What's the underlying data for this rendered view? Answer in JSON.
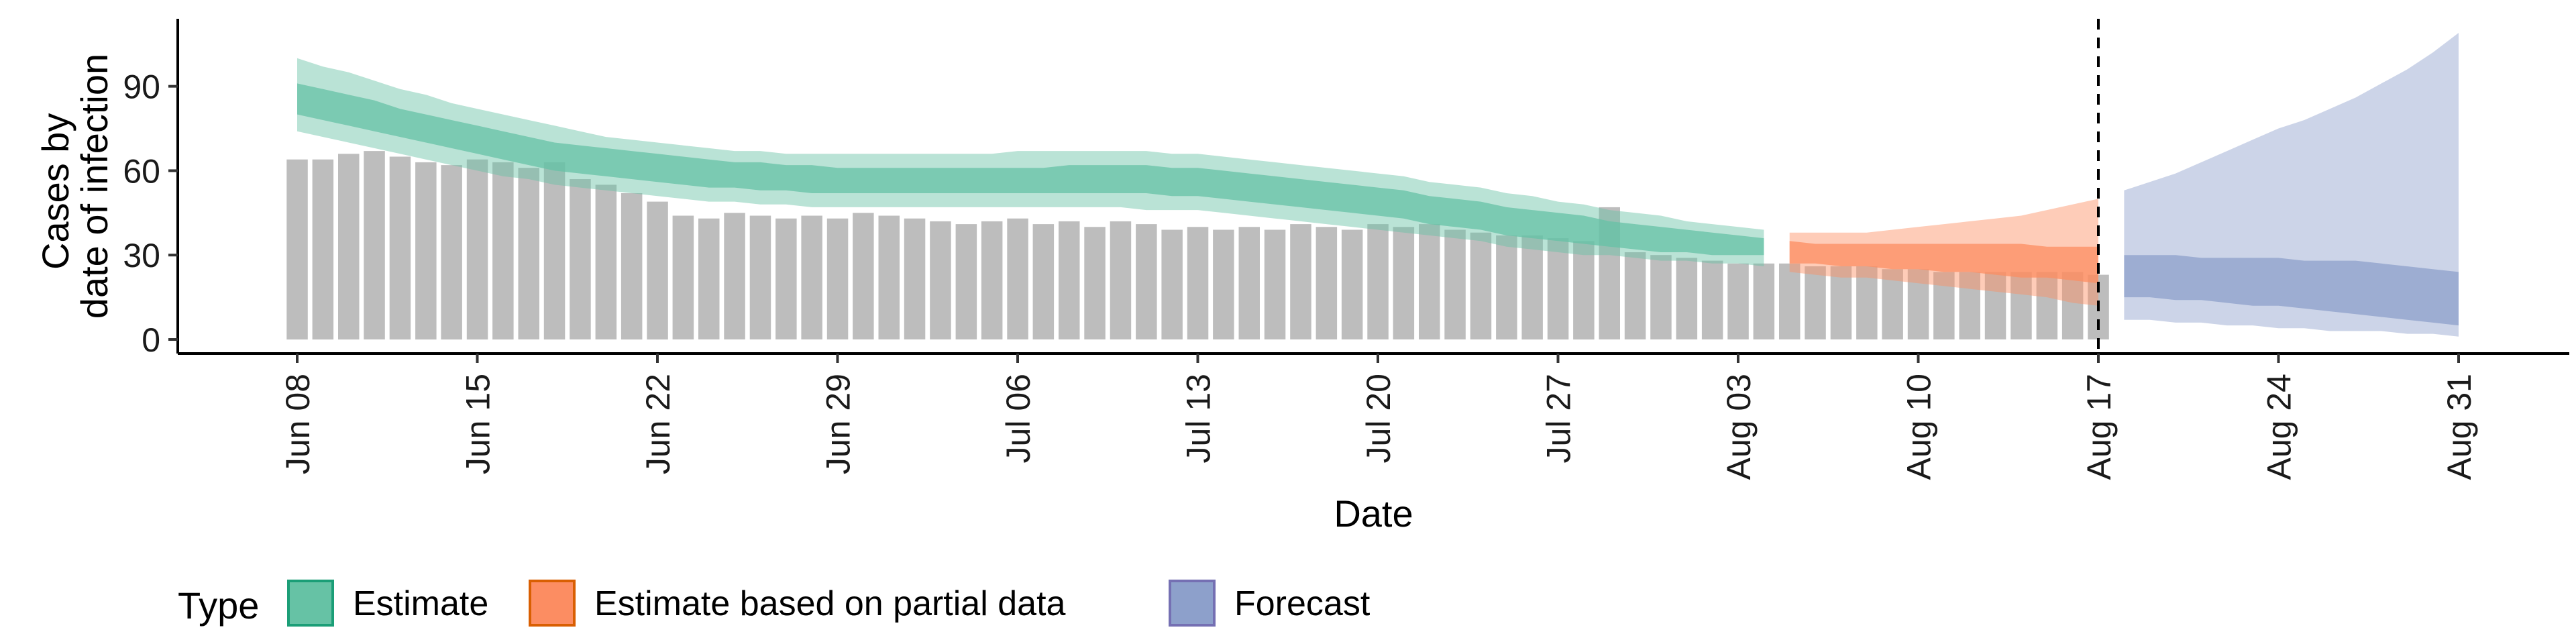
{
  "chart_data": {
    "type": "area",
    "xlabel": "Date",
    "ylabel_lines": [
      "Cases by",
      "date of infection"
    ],
    "ylim": [
      -5,
      114
    ],
    "y_ticks": [
      0,
      30,
      60,
      90
    ],
    "x_start": "2020-06-08",
    "x_end": "2020-08-31",
    "x_ticks": [
      {
        "date": "2020-06-08",
        "label": "Jun 08"
      },
      {
        "date": "2020-06-15",
        "label": "Jun 15"
      },
      {
        "date": "2020-06-22",
        "label": "Jun 22"
      },
      {
        "date": "2020-06-29",
        "label": "Jun 29"
      },
      {
        "date": "2020-07-06",
        "label": "Jul 06"
      },
      {
        "date": "2020-07-13",
        "label": "Jul 13"
      },
      {
        "date": "2020-07-20",
        "label": "Jul 20"
      },
      {
        "date": "2020-07-27",
        "label": "Jul 27"
      },
      {
        "date": "2020-08-03",
        "label": "Aug 03"
      },
      {
        "date": "2020-08-10",
        "label": "Aug 10"
      },
      {
        "date": "2020-08-17",
        "label": "Aug 17"
      },
      {
        "date": "2020-08-24",
        "label": "Aug 24"
      },
      {
        "date": "2020-08-31",
        "label": "Aug 31"
      }
    ],
    "vline_date": "2020-08-17",
    "reported_cases": {
      "start_date": "2020-06-08",
      "color": "#bdbdbd",
      "values": [
        64,
        64,
        66,
        67,
        65,
        63,
        62,
        64,
        63,
        61,
        63,
        57,
        55,
        52,
        49,
        44,
        43,
        45,
        44,
        43,
        44,
        43,
        45,
        44,
        43,
        42,
        41,
        42,
        43,
        41,
        42,
        40,
        42,
        41,
        39,
        40,
        39,
        40,
        39,
        41,
        40,
        39,
        41,
        40,
        41,
        39,
        38,
        37,
        37,
        36,
        35,
        47,
        31,
        30,
        29,
        28,
        27,
        27,
        27,
        26,
        26,
        26,
        25,
        25,
        24,
        24,
        24,
        24,
        24,
        24,
        23
      ]
    },
    "series": [
      {
        "name": "Estimate",
        "color": "#66c2a5",
        "start_date": "2020-06-08",
        "median": [
          85,
          83,
          81,
          79,
          77,
          75,
          73,
          71,
          69,
          67,
          65,
          64,
          63,
          62,
          61,
          60,
          59,
          59,
          58,
          58,
          57,
          57,
          57,
          57,
          57,
          57,
          57,
          57,
          57,
          57,
          57,
          57,
          57,
          57,
          56,
          56,
          55,
          54,
          53,
          52,
          51,
          50,
          49,
          48,
          46,
          45,
          44,
          42,
          41,
          40,
          39,
          38,
          37,
          36,
          35,
          34,
          34,
          33
        ],
        "lower50": [
          80,
          78,
          76,
          74,
          72,
          70,
          68,
          66,
          64,
          62,
          60,
          59,
          58,
          57,
          56,
          55,
          54,
          54,
          53,
          53,
          52,
          52,
          52,
          52,
          52,
          52,
          52,
          52,
          52,
          52,
          52,
          52,
          52,
          52,
          51,
          51,
          50,
          49,
          48,
          47,
          46,
          45,
          44,
          43,
          41,
          40,
          39,
          37,
          36,
          35,
          34,
          33,
          32,
          31,
          31,
          30,
          30,
          30
        ],
        "upper50": [
          91,
          89,
          87,
          85,
          82,
          80,
          78,
          76,
          74,
          72,
          70,
          69,
          68,
          67,
          66,
          65,
          64,
          63,
          63,
          62,
          62,
          61,
          61,
          61,
          61,
          61,
          61,
          61,
          61,
          61,
          62,
          62,
          62,
          62,
          61,
          61,
          60,
          59,
          58,
          57,
          56,
          55,
          54,
          53,
          51,
          50,
          49,
          47,
          46,
          45,
          44,
          42,
          41,
          40,
          39,
          38,
          37,
          36
        ],
        "lower90": [
          74,
          72,
          70,
          68,
          66,
          64,
          62,
          60,
          58,
          57,
          55,
          54,
          53,
          52,
          51,
          50,
          49,
          49,
          48,
          48,
          47,
          47,
          47,
          47,
          47,
          47,
          47,
          47,
          47,
          47,
          47,
          47,
          47,
          46,
          46,
          46,
          45,
          44,
          43,
          42,
          41,
          40,
          39,
          38,
          37,
          36,
          35,
          33,
          32,
          31,
          30,
          30,
          29,
          28,
          28,
          27,
          27,
          26
        ],
        "upper90": [
          100,
          97,
          95,
          92,
          89,
          87,
          84,
          82,
          80,
          78,
          76,
          74,
          72,
          71,
          70,
          69,
          68,
          67,
          67,
          66,
          66,
          66,
          66,
          66,
          66,
          66,
          66,
          66,
          67,
          67,
          67,
          67,
          67,
          67,
          66,
          66,
          65,
          64,
          63,
          62,
          61,
          60,
          59,
          58,
          56,
          55,
          54,
          52,
          51,
          49,
          48,
          46,
          45,
          44,
          42,
          41,
          40,
          39
        ]
      },
      {
        "name": "Estimate based on partial data",
        "color": "#fc8d62",
        "start_date": "2020-08-05",
        "median": [
          31,
          31,
          30,
          30,
          30,
          29,
          29,
          29,
          28,
          28,
          28,
          27,
          27
        ],
        "lower50": [
          27,
          27,
          26,
          26,
          25,
          25,
          24,
          24,
          23,
          22,
          22,
          21,
          20
        ],
        "upper50": [
          35,
          34,
          34,
          34,
          34,
          34,
          34,
          34,
          34,
          34,
          33,
          33,
          33
        ],
        "lower90": [
          24,
          23,
          22,
          22,
          21,
          20,
          19,
          18,
          17,
          16,
          15,
          13,
          12
        ],
        "upper90": [
          38,
          38,
          38,
          38,
          39,
          40,
          41,
          42,
          43,
          44,
          46,
          48,
          50
        ]
      },
      {
        "name": "Forecast",
        "color": "#8da0cb",
        "start_date": "2020-08-18",
        "median": [
          22,
          22,
          22,
          21,
          21,
          20,
          20,
          19,
          19,
          18,
          18,
          17,
          17,
          16
        ],
        "lower50": [
          15,
          15,
          14,
          14,
          13,
          12,
          12,
          11,
          10,
          9,
          8,
          7,
          6,
          5
        ],
        "upper50": [
          30,
          30,
          30,
          29,
          29,
          29,
          29,
          28,
          28,
          28,
          27,
          26,
          25,
          24
        ],
        "lower90": [
          7,
          7,
          6,
          6,
          5,
          5,
          4,
          4,
          3,
          3,
          3,
          2,
          2,
          1
        ],
        "upper90": [
          53,
          56,
          59,
          63,
          67,
          71,
          75,
          78,
          82,
          86,
          91,
          96,
          102,
          109
        ]
      }
    ],
    "legend": {
      "title": "Type",
      "position": "bottom-left",
      "items": [
        {
          "label": "Estimate",
          "fill": "#66c2a5",
          "stroke": "#1b9e77"
        },
        {
          "label": "Estimate based on partial data",
          "fill": "#fc8d62",
          "stroke": "#d95f02"
        },
        {
          "label": "Forecast",
          "fill": "#8da0cb",
          "stroke": "#7570b3"
        }
      ]
    },
    "grid": false
  }
}
